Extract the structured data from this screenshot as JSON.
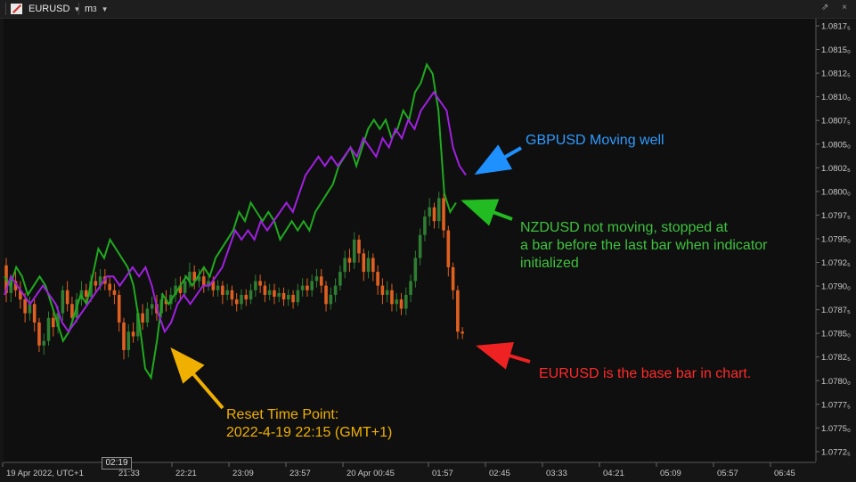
{
  "toolbar": {
    "symbol": "EURUSD",
    "timeframe_base": "m",
    "timeframe_sub": "3",
    "caret": "▼",
    "window_buttons": "⇗ ×"
  },
  "time_badge": "02:19",
  "annotations": {
    "gbp_line1": "GBPUSD Moving well",
    "nzd_line1": "NZDUSD not moving, stopped at",
    "nzd_line2": "a bar before the last bar when indicator",
    "nzd_line3": "initialized",
    "eur_line1": "EURUSD is the base bar in chart.",
    "reset_line1": "Reset Time Point:",
    "reset_line2": "2022-4-19 22:15 (GMT+1)"
  },
  "colors": {
    "gbpusd": "#a020e0",
    "nzdusd": "#1faa1f",
    "candle_up": "#2e7d32",
    "candle_down": "#e06020",
    "blue_arrow": "#1e90ff",
    "green_arrow": "#22bb22",
    "red_arrow": "#ee2222",
    "orange_arrow": "#f0b000"
  },
  "chart_data": {
    "type": "line",
    "y_axis": {
      "side": "right",
      "range": [
        1.07712,
        1.08182
      ],
      "ticks": [
        "1.0817₅",
        "1.0815₀",
        "1.0812₅",
        "1.0810₀",
        "1.0807₅",
        "1.0805₀",
        "1.0802₅",
        "1.0800₀",
        "1.0797₅",
        "1.0795₀",
        "1.0792₅",
        "1.0790₀",
        "1.0787₅",
        "1.0785₀",
        "1.0782₅",
        "1.0780₀",
        "1.0777₅",
        "1.0775₀",
        "1.0772₅"
      ]
    },
    "x_axis": {
      "labels": [
        "19 Apr 2022, UTC+1",
        "21:33",
        "22:21",
        "23:09",
        "23:57",
        "20 Apr 00:45",
        "01:57",
        "02:45",
        "03:33",
        "04:21",
        "05:09",
        "05:57",
        "06:45"
      ]
    },
    "candles": [
      {
        "o": 1.07922,
        "c": 1.07892,
        "h": 1.0793,
        "l": 1.07882
      },
      {
        "o": 1.07892,
        "c": 1.07905,
        "h": 1.07912,
        "l": 1.07882
      },
      {
        "o": 1.07905,
        "c": 1.07895,
        "h": 1.07915,
        "l": 1.07888
      },
      {
        "o": 1.07895,
        "c": 1.07885,
        "h": 1.07905,
        "l": 1.07875
      },
      {
        "o": 1.07885,
        "c": 1.0787,
        "h": 1.07892,
        "l": 1.0786
      },
      {
        "o": 1.0787,
        "c": 1.0788,
        "h": 1.07888,
        "l": 1.07862
      },
      {
        "o": 1.0788,
        "c": 1.0786,
        "h": 1.07885,
        "l": 1.0785
      },
      {
        "o": 1.0786,
        "c": 1.07835,
        "h": 1.07865,
        "l": 1.07828
      },
      {
        "o": 1.07835,
        "c": 1.0784,
        "h": 1.07848,
        "l": 1.07825
      },
      {
        "o": 1.0784,
        "c": 1.07865,
        "h": 1.07872,
        "l": 1.07835
      },
      {
        "o": 1.07865,
        "c": 1.07855,
        "h": 1.07875,
        "l": 1.07845
      },
      {
        "o": 1.07855,
        "c": 1.0787,
        "h": 1.07878,
        "l": 1.07848
      },
      {
        "o": 1.0787,
        "c": 1.07895,
        "h": 1.079,
        "l": 1.07862
      },
      {
        "o": 1.07895,
        "c": 1.0788,
        "h": 1.07905,
        "l": 1.07872
      },
      {
        "o": 1.0788,
        "c": 1.07865,
        "h": 1.07888,
        "l": 1.07858
      },
      {
        "o": 1.07865,
        "c": 1.07885,
        "h": 1.07892,
        "l": 1.0786
      },
      {
        "o": 1.07885,
        "c": 1.07895,
        "h": 1.07905,
        "l": 1.07878
      },
      {
        "o": 1.07895,
        "c": 1.07888,
        "h": 1.07902,
        "l": 1.0788
      },
      {
        "o": 1.07888,
        "c": 1.07905,
        "h": 1.07912,
        "l": 1.07882
      },
      {
        "o": 1.07905,
        "c": 1.079,
        "h": 1.07915,
        "l": 1.07892
      },
      {
        "o": 1.079,
        "c": 1.0791,
        "h": 1.07918,
        "l": 1.07895
      },
      {
        "o": 1.0791,
        "c": 1.07902,
        "h": 1.07918,
        "l": 1.07895
      },
      {
        "o": 1.07902,
        "c": 1.07895,
        "h": 1.0791,
        "l": 1.07888
      },
      {
        "o": 1.07895,
        "c": 1.0789,
        "h": 1.07902,
        "l": 1.0788
      },
      {
        "o": 1.0789,
        "c": 1.0786,
        "h": 1.07895,
        "l": 1.0785
      },
      {
        "o": 1.0786,
        "c": 1.0783,
        "h": 1.07865,
        "l": 1.0782
      },
      {
        "o": 1.0783,
        "c": 1.0785,
        "h": 1.07858,
        "l": 1.07822
      },
      {
        "o": 1.0785,
        "c": 1.07845,
        "h": 1.0786,
        "l": 1.07838
      },
      {
        "o": 1.07845,
        "c": 1.0787,
        "h": 1.07875,
        "l": 1.0784
      },
      {
        "o": 1.0787,
        "c": 1.0786,
        "h": 1.0788,
        "l": 1.07852
      },
      {
        "o": 1.0786,
        "c": 1.07875,
        "h": 1.07882,
        "l": 1.07855
      },
      {
        "o": 1.07875,
        "c": 1.0788,
        "h": 1.07888,
        "l": 1.07868
      },
      {
        "o": 1.0788,
        "c": 1.0787,
        "h": 1.0789,
        "l": 1.07862
      },
      {
        "o": 1.0787,
        "c": 1.07885,
        "h": 1.07892,
        "l": 1.07865
      },
      {
        "o": 1.07885,
        "c": 1.0788,
        "h": 1.07895,
        "l": 1.07872
      },
      {
        "o": 1.0788,
        "c": 1.0789,
        "h": 1.07898,
        "l": 1.07874
      },
      {
        "o": 1.0789,
        "c": 1.079,
        "h": 1.07908,
        "l": 1.07882
      },
      {
        "o": 1.079,
        "c": 1.07892,
        "h": 1.0791,
        "l": 1.07885
      },
      {
        "o": 1.07892,
        "c": 1.07905,
        "h": 1.07912,
        "l": 1.07886
      },
      {
        "o": 1.07905,
        "c": 1.07915,
        "h": 1.07925,
        "l": 1.07898
      },
      {
        "o": 1.07915,
        "c": 1.07905,
        "h": 1.07922,
        "l": 1.07896
      },
      {
        "o": 1.07905,
        "c": 1.0791,
        "h": 1.07918,
        "l": 1.07898
      },
      {
        "o": 1.0791,
        "c": 1.079,
        "h": 1.07918,
        "l": 1.07892
      },
      {
        "o": 1.079,
        "c": 1.07905,
        "h": 1.07912,
        "l": 1.07894
      },
      {
        "o": 1.07905,
        "c": 1.07895,
        "h": 1.0791,
        "l": 1.07888
      },
      {
        "o": 1.07895,
        "c": 1.079,
        "h": 1.07906,
        "l": 1.07888
      },
      {
        "o": 1.079,
        "c": 1.0789,
        "h": 1.07905,
        "l": 1.0788
      },
      {
        "o": 1.0789,
        "c": 1.07895,
        "h": 1.07902,
        "l": 1.07884
      },
      {
        "o": 1.07895,
        "c": 1.07885,
        "h": 1.079,
        "l": 1.07878
      },
      {
        "o": 1.07885,
        "c": 1.0788,
        "h": 1.07892,
        "l": 1.07872
      },
      {
        "o": 1.0788,
        "c": 1.0789,
        "h": 1.07896,
        "l": 1.07874
      },
      {
        "o": 1.0789,
        "c": 1.07885,
        "h": 1.07896,
        "l": 1.07878
      },
      {
        "o": 1.07885,
        "c": 1.07895,
        "h": 1.07902,
        "l": 1.0788
      },
      {
        "o": 1.07895,
        "c": 1.07905,
        "h": 1.07912,
        "l": 1.07888
      },
      {
        "o": 1.07905,
        "c": 1.079,
        "h": 1.07912,
        "l": 1.07892
      },
      {
        "o": 1.079,
        "c": 1.0789,
        "h": 1.07905,
        "l": 1.07882
      },
      {
        "o": 1.0789,
        "c": 1.07895,
        "h": 1.07902,
        "l": 1.07884
      },
      {
        "o": 1.07895,
        "c": 1.07888,
        "h": 1.07902,
        "l": 1.0788
      },
      {
        "o": 1.07888,
        "c": 1.07892,
        "h": 1.07898,
        "l": 1.07882
      },
      {
        "o": 1.07892,
        "c": 1.07885,
        "h": 1.07898,
        "l": 1.07878
      },
      {
        "o": 1.07885,
        "c": 1.0789,
        "h": 1.07896,
        "l": 1.07878
      },
      {
        "o": 1.0789,
        "c": 1.07882,
        "h": 1.07895,
        "l": 1.07875
      },
      {
        "o": 1.07882,
        "c": 1.07895,
        "h": 1.07902,
        "l": 1.07878
      },
      {
        "o": 1.07895,
        "c": 1.079,
        "h": 1.07908,
        "l": 1.07888
      },
      {
        "o": 1.079,
        "c": 1.07895,
        "h": 1.07908,
        "l": 1.07888
      },
      {
        "o": 1.07895,
        "c": 1.07905,
        "h": 1.07912,
        "l": 1.07888
      },
      {
        "o": 1.07905,
        "c": 1.0791,
        "h": 1.07918,
        "l": 1.07898
      },
      {
        "o": 1.0791,
        "c": 1.079,
        "h": 1.07918,
        "l": 1.07892
      },
      {
        "o": 1.079,
        "c": 1.0788,
        "h": 1.07905,
        "l": 1.07872
      },
      {
        "o": 1.0788,
        "c": 1.0789,
        "h": 1.07898,
        "l": 1.07874
      },
      {
        "o": 1.0789,
        "c": 1.079,
        "h": 1.07908,
        "l": 1.07882
      },
      {
        "o": 1.079,
        "c": 1.07915,
        "h": 1.07922,
        "l": 1.07895
      },
      {
        "o": 1.07915,
        "c": 1.0793,
        "h": 1.07938,
        "l": 1.07908
      },
      {
        "o": 1.0793,
        "c": 1.07925,
        "h": 1.0794,
        "l": 1.07915
      },
      {
        "o": 1.07925,
        "c": 1.0795,
        "h": 1.07958,
        "l": 1.07918
      },
      {
        "o": 1.0795,
        "c": 1.07935,
        "h": 1.07955,
        "l": 1.07925
      },
      {
        "o": 1.07935,
        "c": 1.07915,
        "h": 1.0794,
        "l": 1.07905
      },
      {
        "o": 1.07915,
        "c": 1.0793,
        "h": 1.07938,
        "l": 1.07908
      },
      {
        "o": 1.0793,
        "c": 1.07915,
        "h": 1.07935,
        "l": 1.07905
      },
      {
        "o": 1.07915,
        "c": 1.079,
        "h": 1.07922,
        "l": 1.0789
      },
      {
        "o": 1.079,
        "c": 1.0789,
        "h": 1.07908,
        "l": 1.0788
      },
      {
        "o": 1.0789,
        "c": 1.07895,
        "h": 1.07905,
        "l": 1.07882
      },
      {
        "o": 1.07895,
        "c": 1.0788,
        "h": 1.07902,
        "l": 1.07872
      },
      {
        "o": 1.0788,
        "c": 1.07885,
        "h": 1.07892,
        "l": 1.07872
      },
      {
        "o": 1.07885,
        "c": 1.07875,
        "h": 1.07892,
        "l": 1.07868
      },
      {
        "o": 1.07875,
        "c": 1.0789,
        "h": 1.07898,
        "l": 1.07868
      },
      {
        "o": 1.0789,
        "c": 1.07905,
        "h": 1.07912,
        "l": 1.07882
      },
      {
        "o": 1.07905,
        "c": 1.0793,
        "h": 1.07938,
        "l": 1.07898
      },
      {
        "o": 1.0793,
        "c": 1.07955,
        "h": 1.07962,
        "l": 1.07922
      },
      {
        "o": 1.07955,
        "c": 1.07975,
        "h": 1.07982,
        "l": 1.07948
      },
      {
        "o": 1.07975,
        "c": 1.07985,
        "h": 1.07995,
        "l": 1.07965
      },
      {
        "o": 1.07985,
        "c": 1.0797,
        "h": 1.0799,
        "l": 1.07962
      },
      {
        "o": 1.0797,
        "c": 1.07995,
        "h": 1.08002,
        "l": 1.07962
      },
      {
        "o": 1.07995,
        "c": 1.0796,
        "h": 1.08,
        "l": 1.07952
      },
      {
        "o": 1.0796,
        "c": 1.0792,
        "h": 1.07965,
        "l": 1.0791
      },
      {
        "o": 1.0792,
        "c": 1.07895,
        "h": 1.07925,
        "l": 1.07885
      },
      {
        "o": 1.07895,
        "c": 1.0785,
        "h": 1.079,
        "l": 1.07842
      },
      {
        "o": 1.0785,
        "c": 1.07848,
        "h": 1.07855,
        "l": 1.07842
      }
    ],
    "series": [
      {
        "name": "NZDUSD",
        "values": [
          1.0791,
          1.079,
          1.0792,
          1.0791,
          1.0789,
          1.079,
          1.0791,
          1.079,
          1.0788,
          1.0786,
          1.0784,
          1.0785,
          1.0787,
          1.0789,
          1.0788,
          1.0791,
          1.0794,
          1.0793,
          1.0795,
          1.0794,
          1.0793,
          1.0792,
          1.079,
          1.0786,
          1.0781,
          1.078,
          1.0784,
          1.0789,
          1.0788,
          1.0789,
          1.079,
          1.0791,
          1.079,
          1.0791,
          1.0792,
          1.0791,
          1.0793,
          1.0794,
          1.0795,
          1.0796,
          1.0798,
          1.0797,
          1.0799,
          1.0798,
          1.0797,
          1.0798,
          1.0797,
          1.0795,
          1.0796,
          1.0797,
          1.0796,
          1.0797,
          1.0796,
          1.0798,
          1.0799,
          1.08,
          1.0801,
          1.0803,
          1.0804,
          1.0805,
          1.0803,
          1.0805,
          1.0807,
          1.0808,
          1.0807,
          1.0808,
          1.0806,
          1.0807,
          1.0809,
          1.0808,
          1.0811,
          1.0812,
          1.0814,
          1.0813,
          1.0809,
          1.08,
          1.0798,
          1.0799
        ]
      },
      {
        "name": "GBPUSD",
        "values": [
          1.0789,
          1.0791,
          1.079,
          1.0789,
          1.0788,
          1.0789,
          1.079,
          1.0789,
          1.0788,
          1.0786,
          1.0785,
          1.0786,
          1.0787,
          1.0788,
          1.0789,
          1.079,
          1.0791,
          1.0791,
          1.079,
          1.0791,
          1.0792,
          1.0791,
          1.0792,
          1.079,
          1.0787,
          1.0785,
          1.0786,
          1.0788,
          1.0789,
          1.0788,
          1.0789,
          1.079,
          1.079,
          1.0791,
          1.0792,
          1.0794,
          1.0796,
          1.0795,
          1.0796,
          1.0795,
          1.0797,
          1.0796,
          1.0797,
          1.0798,
          1.0799,
          1.0798,
          1.08,
          1.0802,
          1.0803,
          1.0804,
          1.0803,
          1.0804,
          1.0803,
          1.0804,
          1.0805,
          1.0804,
          1.0806,
          1.0805,
          1.0804,
          1.0806,
          1.0805,
          1.0807,
          1.0806,
          1.0808,
          1.0807,
          1.0809,
          1.081,
          1.0811,
          1.081,
          1.0809,
          1.0805,
          1.0803,
          1.0802
        ]
      }
    ]
  }
}
